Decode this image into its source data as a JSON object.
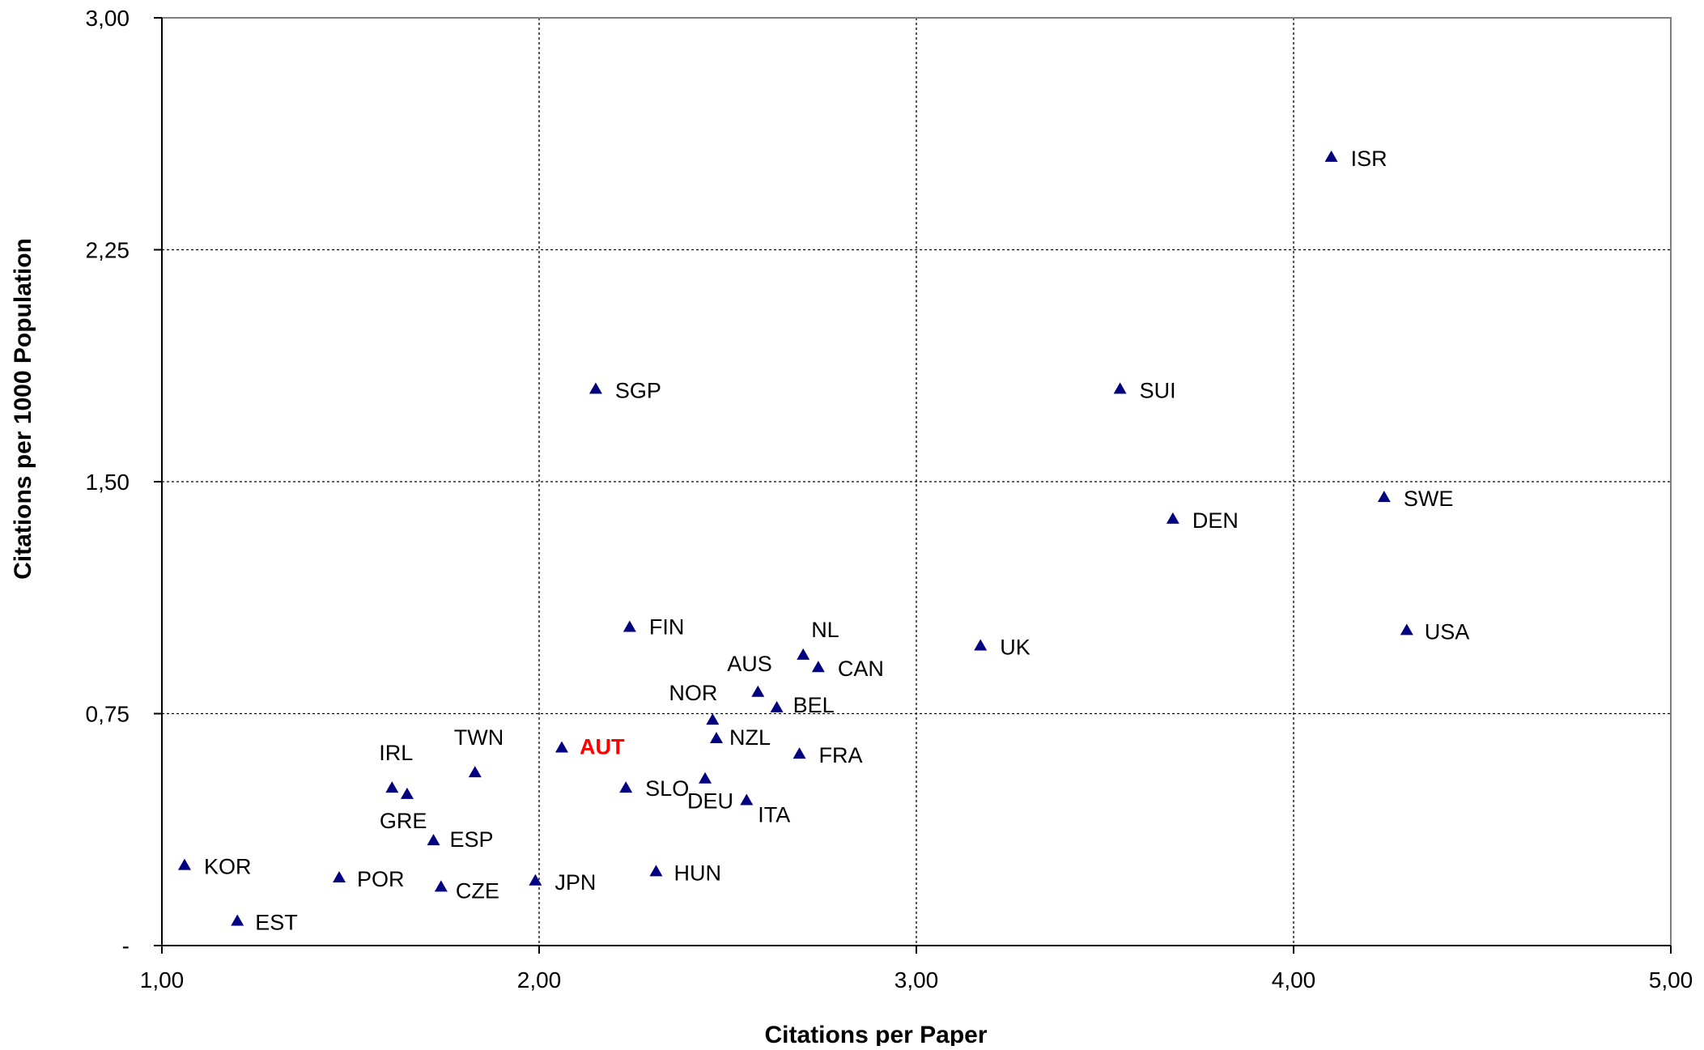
{
  "chart_data": {
    "type": "scatter",
    "title": "",
    "xlabel": "Citations per Paper",
    "ylabel": "Citations per 1000 Population",
    "xlim": [
      1.0,
      5.0
    ],
    "ylim": [
      0,
      3.0
    ],
    "x_ticks": [
      1.0,
      2.0,
      3.0,
      4.0,
      5.0
    ],
    "x_tick_labels": [
      "1,00",
      "2,00",
      "3,00",
      "4,00",
      "5,00"
    ],
    "y_ticks": [
      0,
      0.75,
      1.5,
      2.25,
      3.0
    ],
    "y_tick_labels": [
      "-",
      "0,75",
      "1,50",
      "2,25",
      "3,00"
    ],
    "grid": true,
    "grid_style": "dotted",
    "marker": "triangle",
    "marker_color": "#000080",
    "highlight_color": "#ff0000",
    "points": [
      {
        "label": "ISR",
        "x": 4.1,
        "y": 2.55
      },
      {
        "label": "SGP",
        "x": 2.15,
        "y": 1.8
      },
      {
        "label": "SUI",
        "x": 3.54,
        "y": 1.8
      },
      {
        "label": "SWE",
        "x": 4.24,
        "y": 1.45
      },
      {
        "label": "DEN",
        "x": 3.68,
        "y": 1.38
      },
      {
        "label": "FIN",
        "x": 2.24,
        "y": 1.03
      },
      {
        "label": "USA",
        "x": 4.3,
        "y": 1.02
      },
      {
        "label": "UK",
        "x": 3.17,
        "y": 0.97
      },
      {
        "label": "NL",
        "x": 2.7,
        "y": 0.94
      },
      {
        "label": "CAN",
        "x": 2.74,
        "y": 0.9
      },
      {
        "label": "AUS",
        "x": 2.58,
        "y": 0.82
      },
      {
        "label": "BEL",
        "x": 2.63,
        "y": 0.77
      },
      {
        "label": "NOR",
        "x": 2.46,
        "y": 0.73
      },
      {
        "label": "NZL",
        "x": 2.47,
        "y": 0.67
      },
      {
        "label": "AUT",
        "x": 2.06,
        "y": 0.64,
        "highlight": true
      },
      {
        "label": "FRA",
        "x": 2.69,
        "y": 0.62
      },
      {
        "label": "TWN",
        "x": 1.83,
        "y": 0.56
      },
      {
        "label": "DEU",
        "x": 2.44,
        "y": 0.54
      },
      {
        "label": "IRL",
        "x": 1.61,
        "y": 0.51
      },
      {
        "label": "SLO",
        "x": 2.23,
        "y": 0.51
      },
      {
        "label": "GRE",
        "x": 1.65,
        "y": 0.49
      },
      {
        "label": "ITA",
        "x": 2.55,
        "y": 0.47
      },
      {
        "label": "ESP",
        "x": 1.72,
        "y": 0.34
      },
      {
        "label": "KOR",
        "x": 1.06,
        "y": 0.26
      },
      {
        "label": "HUN",
        "x": 2.31,
        "y": 0.24
      },
      {
        "label": "POR",
        "x": 1.47,
        "y": 0.22
      },
      {
        "label": "JPN",
        "x": 1.99,
        "y": 0.21
      },
      {
        "label": "CZE",
        "x": 1.74,
        "y": 0.19
      },
      {
        "label": "EST",
        "x": 1.2,
        "y": 0.08
      }
    ]
  }
}
